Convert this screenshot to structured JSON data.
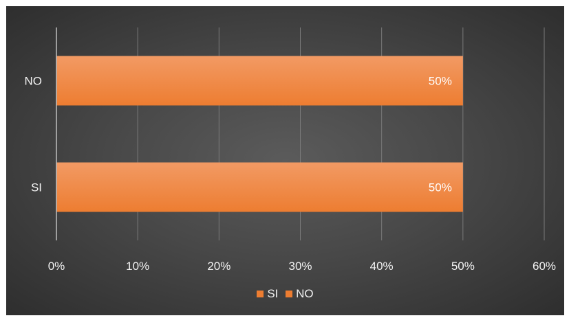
{
  "chart_data": {
    "type": "bar",
    "orientation": "horizontal",
    "categories": [
      "SI",
      "NO"
    ],
    "series": [
      {
        "name": "SI",
        "values": [
          50,
          null
        ]
      },
      {
        "name": "NO",
        "values": [
          null,
          50
        ]
      }
    ],
    "data_labels": [
      "50%",
      "50%"
    ],
    "xlim": [
      0,
      60
    ],
    "xticks": [
      "0%",
      "10%",
      "20%",
      "30%",
      "40%",
      "50%",
      "60%"
    ],
    "grid": true,
    "legend_position": "bottom",
    "title": "",
    "xlabel": "",
    "ylabel": ""
  },
  "colors": {
    "bar": "#ED7D31",
    "bar_top": "#F29A64",
    "gridline": "#7a7a7a",
    "axis": "#bfbfbf",
    "background": "#404040"
  },
  "legend": [
    {
      "label": "SI",
      "color": "#ED7D31"
    },
    {
      "label": "NO",
      "color": "#ED7D31"
    }
  ]
}
